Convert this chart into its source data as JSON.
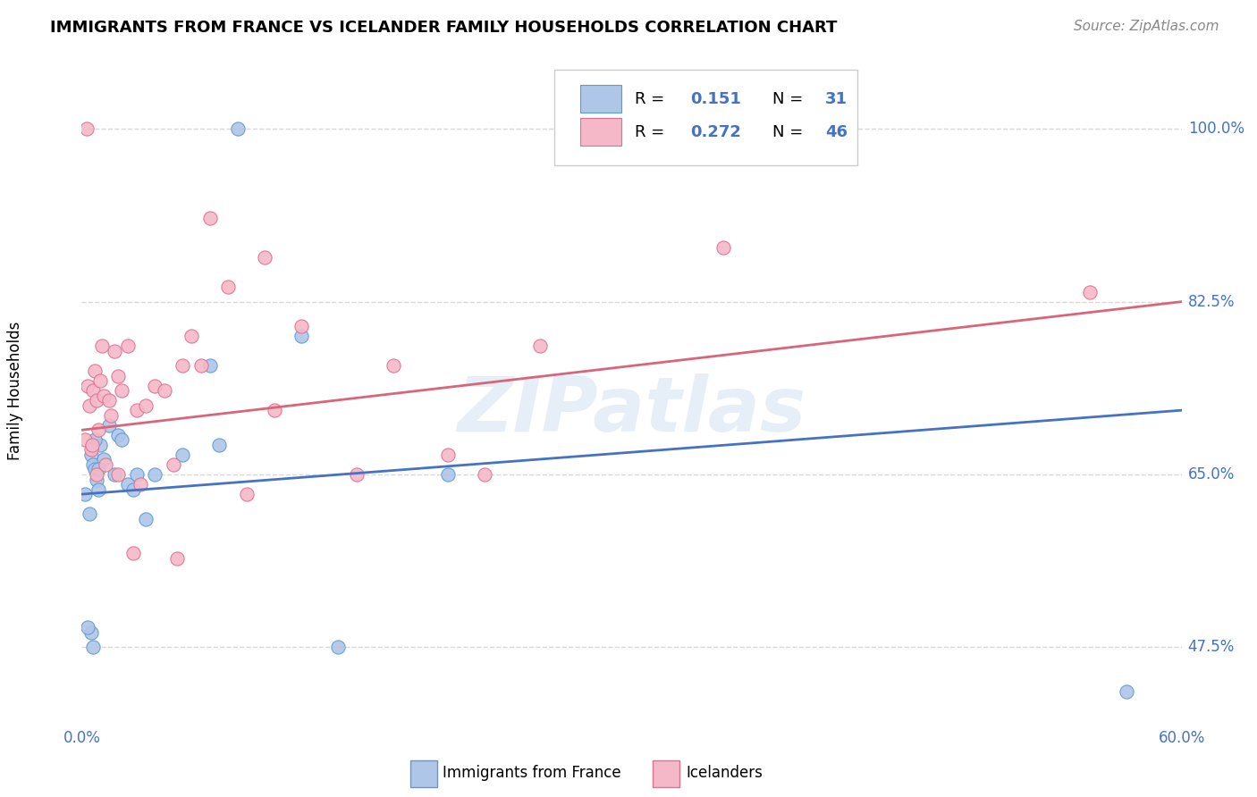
{
  "title": "IMMIGRANTS FROM FRANCE VS ICELANDER FAMILY HOUSEHOLDS CORRELATION CHART",
  "source": "Source: ZipAtlas.com",
  "ylabel": "Family Households",
  "xlim": [
    0.0,
    60.0
  ],
  "ylim": [
    40.0,
    107.0
  ],
  "yticks": [
    47.5,
    65.0,
    82.5,
    100.0
  ],
  "ytick_labels": [
    "47.5%",
    "65.0%",
    "82.5%",
    "100.0%"
  ],
  "xtick_labels": [
    "0.0%",
    "60.0%"
  ],
  "blue_scatter_x": [
    0.2,
    0.4,
    0.5,
    0.5,
    0.6,
    0.7,
    0.8,
    0.9,
    1.0,
    1.2,
    1.5,
    1.8,
    2.0,
    2.2,
    2.5,
    3.0,
    3.5,
    4.0,
    5.5,
    7.0,
    12.0,
    14.0,
    0.3,
    0.6,
    0.7,
    2.8,
    7.5,
    20.0,
    8.5,
    57.0,
    0.9
  ],
  "blue_scatter_y": [
    63.0,
    61.0,
    67.0,
    49.0,
    66.0,
    65.5,
    64.5,
    63.5,
    68.0,
    66.5,
    70.0,
    65.0,
    69.0,
    68.5,
    64.0,
    65.0,
    60.5,
    65.0,
    67.0,
    76.0,
    79.0,
    47.5,
    49.5,
    47.5,
    68.5,
    63.5,
    68.0,
    65.0,
    100.0,
    43.0,
    65.5
  ],
  "pink_scatter_x": [
    0.2,
    0.3,
    0.4,
    0.5,
    0.6,
    0.7,
    0.8,
    0.9,
    1.0,
    1.1,
    1.2,
    1.5,
    1.8,
    2.0,
    2.2,
    2.5,
    3.0,
    3.5,
    4.0,
    4.5,
    5.0,
    5.5,
    6.0,
    7.0,
    8.0,
    9.0,
    10.0,
    12.0,
    15.0,
    17.0,
    20.0,
    25.0,
    0.8,
    1.3,
    2.0,
    3.2,
    6.5,
    22.0,
    5.2,
    35.0,
    55.0,
    0.25,
    1.6,
    2.8,
    10.5,
    0.55
  ],
  "pink_scatter_y": [
    68.5,
    74.0,
    72.0,
    67.5,
    73.5,
    75.5,
    72.5,
    69.5,
    74.5,
    78.0,
    73.0,
    72.5,
    77.5,
    75.0,
    73.5,
    78.0,
    71.5,
    72.0,
    74.0,
    73.5,
    66.0,
    76.0,
    79.0,
    91.0,
    84.0,
    63.0,
    87.0,
    80.0,
    65.0,
    76.0,
    67.0,
    78.0,
    65.0,
    66.0,
    65.0,
    64.0,
    76.0,
    65.0,
    56.5,
    88.0,
    83.5,
    100.0,
    71.0,
    57.0,
    71.5,
    68.0
  ],
  "blue_line_x": [
    0.0,
    60.0
  ],
  "blue_line_y": [
    63.0,
    71.5
  ],
  "pink_line_x": [
    0.0,
    60.0
  ],
  "pink_line_y": [
    69.5,
    82.5
  ],
  "blue_fill_color": "#aec6e8",
  "pink_fill_color": "#f4b8c8",
  "blue_line_color": "#4472c4",
  "pink_line_color": "#d9657a",
  "blue_edge_color": "#5b9bd5",
  "pink_edge_color": "#e07090",
  "watermark": "ZIPatlas",
  "background_color": "#ffffff",
  "grid_color": "#d8d8d8",
  "R_blue": "0.151",
  "N_blue": "31",
  "R_pink": "0.272",
  "N_pink": "46",
  "legend_label_blue": "Immigrants from France",
  "legend_label_pink": "Icelanders"
}
